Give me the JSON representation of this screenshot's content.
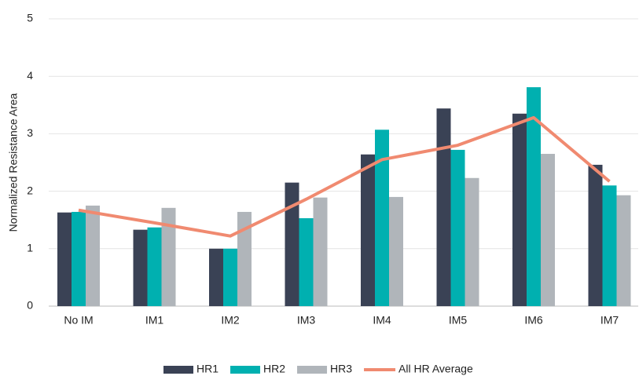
{
  "chart_data": {
    "type": "bar",
    "y_label": "Normalized Resistance Area",
    "categories": [
      "No IM",
      "IM1",
      "IM2",
      "IM3",
      "IM4",
      "IM5",
      "IM6",
      "IM7"
    ],
    "series": [
      {
        "name": "HR1",
        "color": "#3a4255",
        "values": [
          1.63,
          1.33,
          1.0,
          2.15,
          2.64,
          3.44,
          3.35,
          2.46
        ]
      },
      {
        "name": "HR2",
        "color": "#00b0b0",
        "values": [
          1.64,
          1.37,
          1.0,
          1.53,
          3.07,
          2.72,
          3.81,
          2.1
        ]
      },
      {
        "name": "HR3",
        "color": "#b0b5ba",
        "values": [
          1.75,
          1.71,
          1.64,
          1.89,
          1.9,
          2.23,
          2.65,
          1.93
        ]
      }
    ],
    "line_series": {
      "name": "All HR Average",
      "color": "#f08a70",
      "values": [
        1.67,
        1.45,
        1.22,
        1.86,
        2.55,
        2.8,
        3.28,
        2.17
      ]
    },
    "ylim": [
      0,
      5
    ],
    "yticks": [
      0,
      1,
      2,
      3,
      4,
      5
    ],
    "grid": true,
    "legend": "bottom"
  }
}
